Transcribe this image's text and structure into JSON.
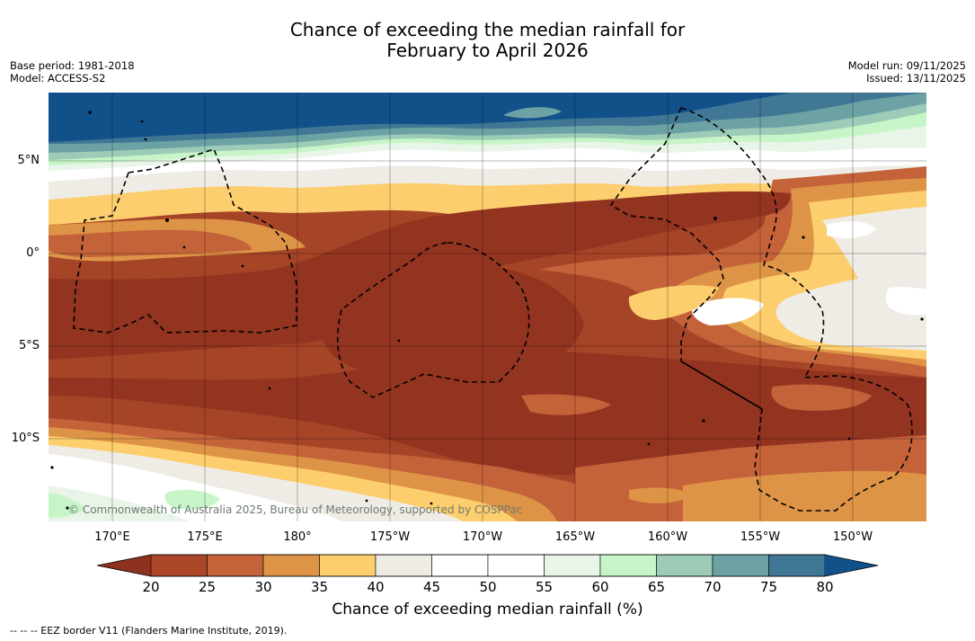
{
  "header": {
    "title_line1": "Chance of exceeding the median rainfall for",
    "title_line2": "February to April 2026",
    "base_period": "Base period: 1981-2018",
    "model": "Model: ACCESS-S2",
    "model_run": "Model run: 09/11/2025",
    "issued": "Issued: 13/11/2025"
  },
  "map": {
    "lat_labels": [
      "5°N",
      "0°",
      "5°S",
      "10°S"
    ],
    "lon_labels": [
      "170°E",
      "175°E",
      "180°",
      "175°W",
      "170°W",
      "165°W",
      "160°W",
      "155°W",
      "150°W"
    ],
    "copyright": "© Commonwealth of Australia 2025, Bureau of Meteorology, supported by COSPPac"
  },
  "colorbar": {
    "ticks": [
      "20",
      "25",
      "30",
      "35",
      "40",
      "45",
      "50",
      "55",
      "60",
      "65",
      "70",
      "75",
      "80"
    ],
    "colors": [
      "#8f3120",
      "#ab4629",
      "#c4623a",
      "#de9446",
      "#fdce6e",
      "#efece6",
      "#ffffff",
      "#ffffff",
      "#e8f5e8",
      "#c7f5c8",
      "#9ccbb7",
      "#6ca2a4",
      "#3f7795"
    ],
    "under_color": "#8f3120",
    "over_color": "#12508a",
    "label": "Chance of exceeding median rainfall (%)"
  },
  "footer": {
    "eez_note": "--  --  -- EEZ border V11 (Flanders Marine Institute, 2019)."
  }
}
